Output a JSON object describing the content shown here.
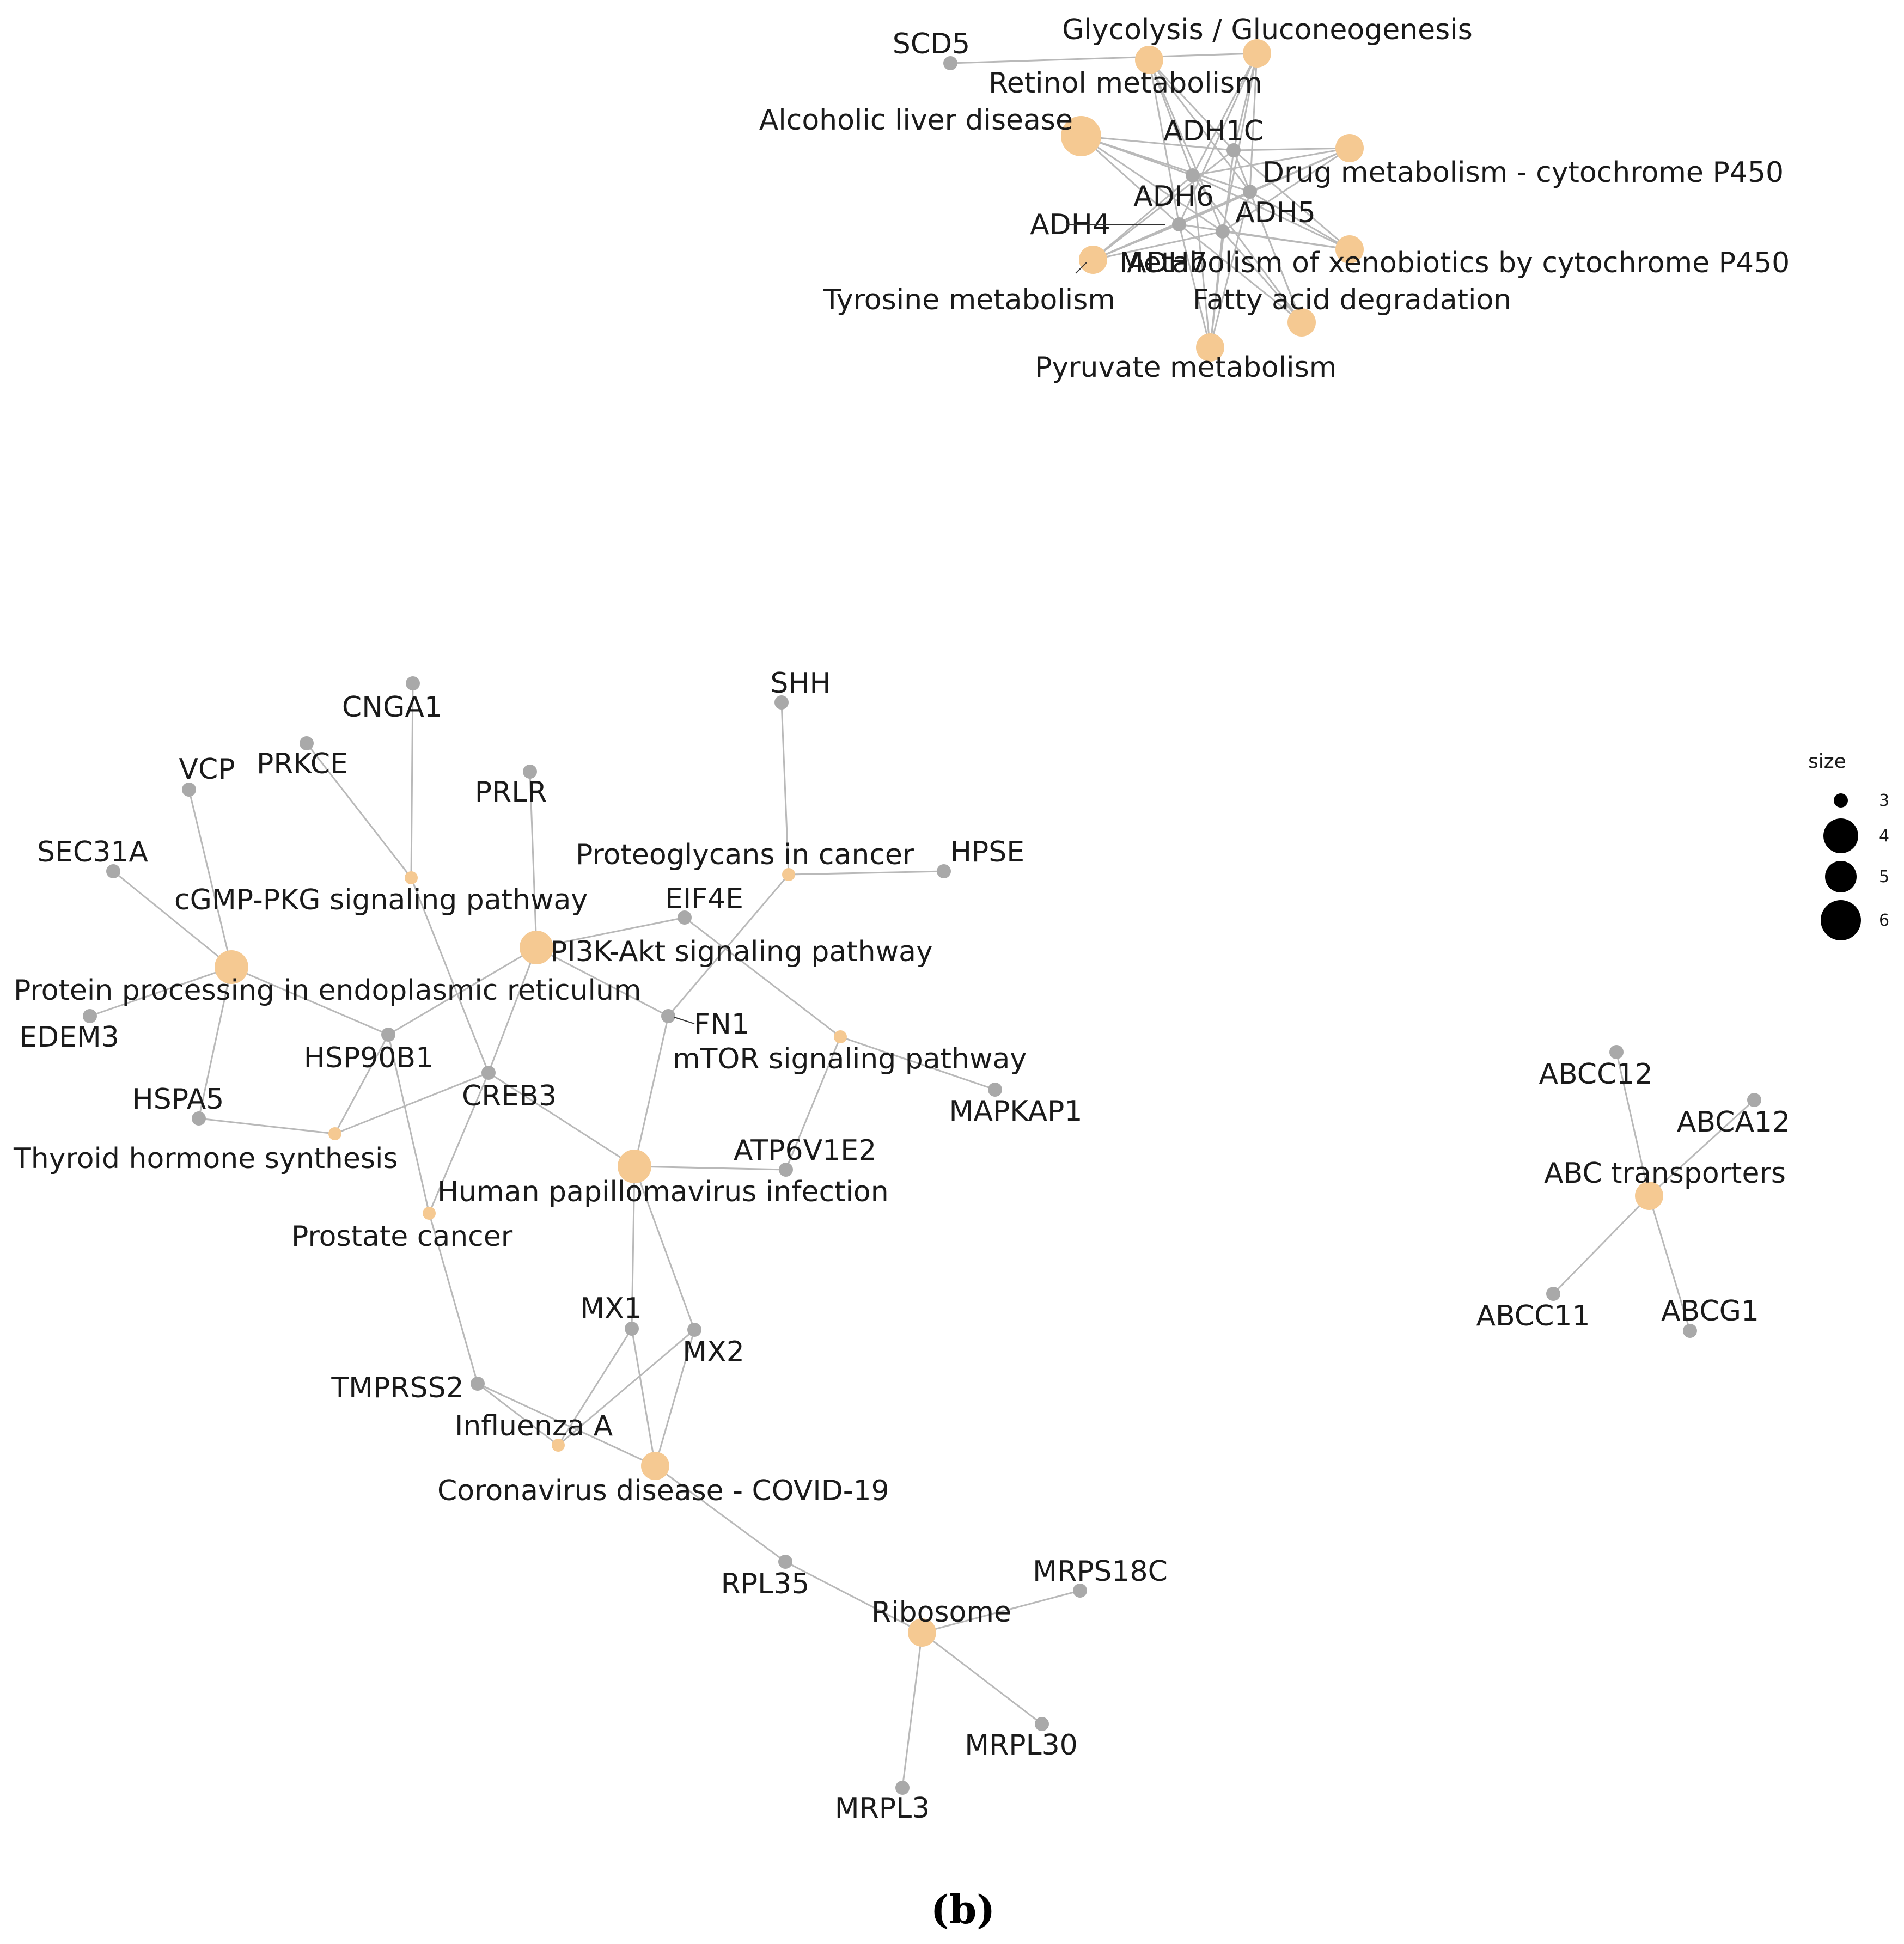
{
  "colors": {
    "pathway": "#f5c992",
    "gene": "#a9a9a9",
    "edge": "#b9b9b9",
    "text": "#1a1a1a"
  },
  "panel_label": "(b)",
  "legend": {
    "title": "size",
    "entries": [
      {
        "label": "3",
        "value": 3
      },
      {
        "label": "4",
        "value": 4
      },
      {
        "label": "5",
        "value": 5
      },
      {
        "label": "6",
        "value": 6
      }
    ]
  },
  "nodes": [
    {
      "id": "glycolysis",
      "label": "Glycolysis / Gluconeogenesis",
      "kind": "pathway",
      "size": 4
    },
    {
      "id": "retinol",
      "label": "Retinol metabolism",
      "kind": "pathway",
      "size": 4
    },
    {
      "id": "alcoholic",
      "label": "Alcoholic liver disease",
      "kind": "pathway",
      "size": 6
    },
    {
      "id": "drug_p450",
      "label": "Drug metabolism - cytochrome P450",
      "kind": "pathway",
      "size": 4
    },
    {
      "id": "xeno_p450",
      "label": "Metabolism of xenobiotics by cytochrome P450",
      "kind": "pathway",
      "size": 4
    },
    {
      "id": "tyrosine",
      "label": "Tyrosine metabolism",
      "kind": "pathway",
      "size": 4
    },
    {
      "id": "fatty",
      "label": "Fatty acid degradation",
      "kind": "pathway",
      "size": 4
    },
    {
      "id": "pyruvate",
      "label": "Pyruvate metabolism",
      "kind": "pathway",
      "size": 4
    },
    {
      "id": "SCD5",
      "label": "SCD5",
      "kind": "gene"
    },
    {
      "id": "ADH1C",
      "label": "ADH1C",
      "kind": "gene"
    },
    {
      "id": "ADH6",
      "label": "ADH6",
      "kind": "gene"
    },
    {
      "id": "ADH5",
      "label": "ADH5",
      "kind": "gene"
    },
    {
      "id": "ADH4",
      "label": "ADH4",
      "kind": "gene"
    },
    {
      "id": "ADH7",
      "label": "ADH7",
      "kind": "gene"
    },
    {
      "id": "cgmp",
      "label": "cGMP-PKG signaling pathway",
      "kind": "pathway",
      "size": 3
    },
    {
      "id": "proteo",
      "label": "Proteoglycans in cancer",
      "kind": "pathway",
      "size": 3
    },
    {
      "id": "pi3k",
      "label": "PI3K-Akt signaling pathway",
      "kind": "pathway",
      "size": 5
    },
    {
      "id": "protein_er",
      "label": "Protein processing in endoplasmic reticulum",
      "kind": "pathway",
      "size": 5
    },
    {
      "id": "mtor",
      "label": "mTOR signaling pathway",
      "kind": "pathway",
      "size": 3
    },
    {
      "id": "thyroid",
      "label": "Thyroid hormone synthesis",
      "kind": "pathway",
      "size": 3
    },
    {
      "id": "hpv",
      "label": "Human papillomavirus infection",
      "kind": "pathway",
      "size": 5
    },
    {
      "id": "prostate",
      "label": "Prostate cancer",
      "kind": "pathway",
      "size": 3
    },
    {
      "id": "influenza",
      "label": "Influenza A",
      "kind": "pathway",
      "size": 3
    },
    {
      "id": "covid",
      "label": "Coronavirus disease - COVID-19",
      "kind": "pathway",
      "size": 4
    },
    {
      "id": "ribosome",
      "label": "Ribosome",
      "kind": "pathway",
      "size": 4
    },
    {
      "id": "abc",
      "label": "ABC transporters",
      "kind": "pathway",
      "size": 4
    },
    {
      "id": "CNGA1",
      "label": "CNGA1",
      "kind": "gene"
    },
    {
      "id": "PRKCE",
      "label": "PRKCE",
      "kind": "gene"
    },
    {
      "id": "VCP",
      "label": "VCP",
      "kind": "gene"
    },
    {
      "id": "PRLR",
      "label": "PRLR",
      "kind": "gene"
    },
    {
      "id": "SHH",
      "label": "SHH",
      "kind": "gene"
    },
    {
      "id": "SEC31A",
      "label": "SEC31A",
      "kind": "gene"
    },
    {
      "id": "HPSE",
      "label": "HPSE",
      "kind": "gene"
    },
    {
      "id": "EIF4E",
      "label": "EIF4E",
      "kind": "gene"
    },
    {
      "id": "EDEM3",
      "label": "EDEM3",
      "kind": "gene"
    },
    {
      "id": "FN1",
      "label": "FN1",
      "kind": "gene"
    },
    {
      "id": "HSP90B1",
      "label": "HSP90B1",
      "kind": "gene"
    },
    {
      "id": "CREB3",
      "label": "CREB3",
      "kind": "gene"
    },
    {
      "id": "HSPA5",
      "label": "HSPA5",
      "kind": "gene"
    },
    {
      "id": "MAPKAP1",
      "label": "MAPKAP1",
      "kind": "gene"
    },
    {
      "id": "ATP6V1E2",
      "label": "ATP6V1E2",
      "kind": "gene"
    },
    {
      "id": "MX1",
      "label": "MX1",
      "kind": "gene"
    },
    {
      "id": "MX2",
      "label": "MX2",
      "kind": "gene"
    },
    {
      "id": "TMPRSS2",
      "label": "TMPRSS2",
      "kind": "gene"
    },
    {
      "id": "RPL35",
      "label": "RPL35",
      "kind": "gene"
    },
    {
      "id": "MRPS18C",
      "label": "MRPS18C",
      "kind": "gene"
    },
    {
      "id": "MRPL30",
      "label": "MRPL30",
      "kind": "gene"
    },
    {
      "id": "MRPL3",
      "label": "MRPL3",
      "kind": "gene"
    },
    {
      "id": "ABCC12",
      "label": "ABCC12",
      "kind": "gene"
    },
    {
      "id": "ABCA12",
      "label": "ABCA12",
      "kind": "gene"
    },
    {
      "id": "ABCC11",
      "label": "ABCC11",
      "kind": "gene"
    },
    {
      "id": "ABCG1",
      "label": "ABCG1",
      "kind": "gene"
    }
  ],
  "edges": [
    [
      "SCD5",
      "retinol"
    ],
    [
      "ADH1C",
      "glycolysis"
    ],
    [
      "ADH1C",
      "retinol"
    ],
    [
      "ADH1C",
      "alcoholic"
    ],
    [
      "ADH1C",
      "drug_p450"
    ],
    [
      "ADH1C",
      "xeno_p450"
    ],
    [
      "ADH1C",
      "tyrosine"
    ],
    [
      "ADH1C",
      "fatty"
    ],
    [
      "ADH1C",
      "pyruvate"
    ],
    [
      "ADH6",
      "glycolysis"
    ],
    [
      "ADH6",
      "retinol"
    ],
    [
      "ADH6",
      "alcoholic"
    ],
    [
      "ADH6",
      "drug_p450"
    ],
    [
      "ADH6",
      "xeno_p450"
    ],
    [
      "ADH6",
      "tyrosine"
    ],
    [
      "ADH6",
      "fatty"
    ],
    [
      "ADH6",
      "pyruvate"
    ],
    [
      "ADH5",
      "glycolysis"
    ],
    [
      "ADH5",
      "retinol"
    ],
    [
      "ADH5",
      "alcoholic"
    ],
    [
      "ADH5",
      "drug_p450"
    ],
    [
      "ADH5",
      "xeno_p450"
    ],
    [
      "ADH5",
      "tyrosine"
    ],
    [
      "ADH5",
      "fatty"
    ],
    [
      "ADH5",
      "pyruvate"
    ],
    [
      "ADH4",
      "glycolysis"
    ],
    [
      "ADH4",
      "retinol"
    ],
    [
      "ADH4",
      "alcoholic"
    ],
    [
      "ADH4",
      "drug_p450"
    ],
    [
      "ADH4",
      "xeno_p450"
    ],
    [
      "ADH4",
      "tyrosine"
    ],
    [
      "ADH4",
      "fatty"
    ],
    [
      "ADH4",
      "pyruvate"
    ],
    [
      "ADH7",
      "glycolysis"
    ],
    [
      "ADH7",
      "retinol"
    ],
    [
      "ADH7",
      "alcoholic"
    ],
    [
      "ADH7",
      "drug_p450"
    ],
    [
      "ADH7",
      "xeno_p450"
    ],
    [
      "ADH7",
      "tyrosine"
    ],
    [
      "ADH7",
      "fatty"
    ],
    [
      "ADH7",
      "pyruvate"
    ],
    [
      "CNGA1",
      "cgmp"
    ],
    [
      "PRKCE",
      "cgmp"
    ],
    [
      "cgmp",
      "CREB3"
    ],
    [
      "VCP",
      "protein_er"
    ],
    [
      "SEC31A",
      "protein_er"
    ],
    [
      "EDEM3",
      "protein_er"
    ],
    [
      "HSPA5",
      "protein_er"
    ],
    [
      "protein_er",
      "HSP90B1"
    ],
    [
      "PRLR",
      "pi3k"
    ],
    [
      "pi3k",
      "EIF4E"
    ],
    [
      "pi3k",
      "HSP90B1"
    ],
    [
      "pi3k",
      "CREB3"
    ],
    [
      "pi3k",
      "FN1"
    ],
    [
      "SHH",
      "proteo"
    ],
    [
      "HPSE",
      "proteo"
    ],
    [
      "proteo",
      "FN1"
    ],
    [
      "EIF4E",
      "mtor"
    ],
    [
      "mtor",
      "MAPKAP1"
    ],
    [
      "mtor",
      "ATP6V1E2"
    ],
    [
      "HSPA5",
      "thyroid"
    ],
    [
      "HSP90B1",
      "thyroid"
    ],
    [
      "CREB3",
      "thyroid"
    ],
    [
      "HSP90B1",
      "prostate"
    ],
    [
      "CREB3",
      "prostate"
    ],
    [
      "prostate",
      "TMPRSS2"
    ],
    [
      "CREB3",
      "hpv"
    ],
    [
      "FN1",
      "hpv"
    ],
    [
      "ATP6V1E2",
      "hpv"
    ],
    [
      "hpv",
      "MX1"
    ],
    [
      "hpv",
      "MX2"
    ],
    [
      "MX1",
      "influenza"
    ],
    [
      "MX2",
      "influenza"
    ],
    [
      "TMPRSS2",
      "influenza"
    ],
    [
      "MX1",
      "covid"
    ],
    [
      "MX2",
      "covid"
    ],
    [
      "TMPRSS2",
      "covid"
    ],
    [
      "covid",
      "RPL35"
    ],
    [
      "RPL35",
      "ribosome"
    ],
    [
      "MRPS18C",
      "ribosome"
    ],
    [
      "MRPL30",
      "ribosome"
    ],
    [
      "MRPL3",
      "ribosome"
    ],
    [
      "ABCC12",
      "abc"
    ],
    [
      "ABCA12",
      "abc"
    ],
    [
      "ABCC11",
      "abc"
    ],
    [
      "ABCG1",
      "abc"
    ]
  ]
}
